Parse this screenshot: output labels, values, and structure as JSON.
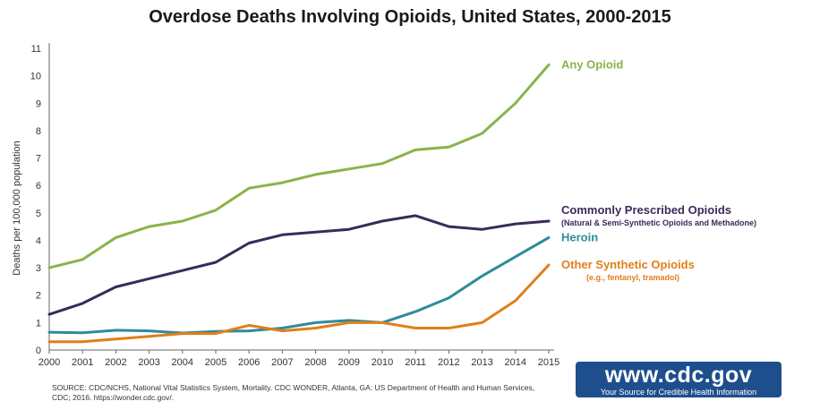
{
  "title": "Overdose Deaths Involving Opioids, United States, 2000-2015",
  "source": "SOURCE: CDC/NCHS, National Vital Statistics System, Mortality. CDC WONDER, Atlanta, GA: US Department of Health and Human Services, CDC; 2016. https://wonder.cdc.gov/.",
  "badge": {
    "url": "www.cdc.gov",
    "tagline": "Your Source for Credible Health Information"
  },
  "chart_data": {
    "type": "line",
    "title": "Overdose Deaths Involving Opioids, United States, 2000-2015",
    "xlabel": "",
    "ylabel": "Deaths per 100,000 population",
    "ylim": [
      0,
      11
    ],
    "yticks": [
      0,
      1,
      2,
      3,
      4,
      5,
      6,
      7,
      8,
      9,
      10,
      11
    ],
    "x": [
      "2000",
      "2001",
      "2002",
      "2003",
      "2004",
      "2005",
      "2006",
      "2007",
      "2008",
      "2009",
      "2010",
      "2011",
      "2012",
      "2013",
      "2014",
      "2015"
    ],
    "grid": false,
    "legend": "inline-right",
    "series": [
      {
        "name": "Any Opioid",
        "sublabel": "",
        "color": "#8ab34a",
        "values": [
          3.0,
          3.3,
          4.1,
          4.5,
          4.7,
          5.1,
          5.9,
          6.1,
          6.4,
          6.6,
          6.8,
          7.3,
          7.4,
          7.9,
          9.0,
          10.4
        ]
      },
      {
        "name": "Commonly Prescribed Opioids",
        "sublabel": "(Natural & Semi-Synthetic Opioids and Methadone)",
        "color": "#3b2a58",
        "values": [
          1.3,
          1.7,
          2.3,
          2.6,
          2.9,
          3.2,
          3.9,
          4.2,
          4.3,
          4.4,
          4.7,
          4.9,
          4.5,
          4.4,
          4.6,
          4.7
        ]
      },
      {
        "name": "Heroin",
        "sublabel": "",
        "color": "#2f8a9c",
        "values": [
          0.65,
          0.63,
          0.72,
          0.7,
          0.62,
          0.68,
          0.7,
          0.8,
          1.0,
          1.08,
          1.0,
          1.4,
          1.9,
          2.7,
          3.4,
          4.1
        ]
      },
      {
        "name": "Other Synthetic Opioids",
        "sublabel": "(e.g., fentanyl, tramadol)",
        "color": "#e07f1a",
        "values": [
          0.3,
          0.3,
          0.4,
          0.5,
          0.6,
          0.6,
          0.9,
          0.7,
          0.8,
          1.0,
          1.0,
          0.8,
          0.8,
          1.0,
          1.8,
          3.1
        ]
      }
    ]
  }
}
